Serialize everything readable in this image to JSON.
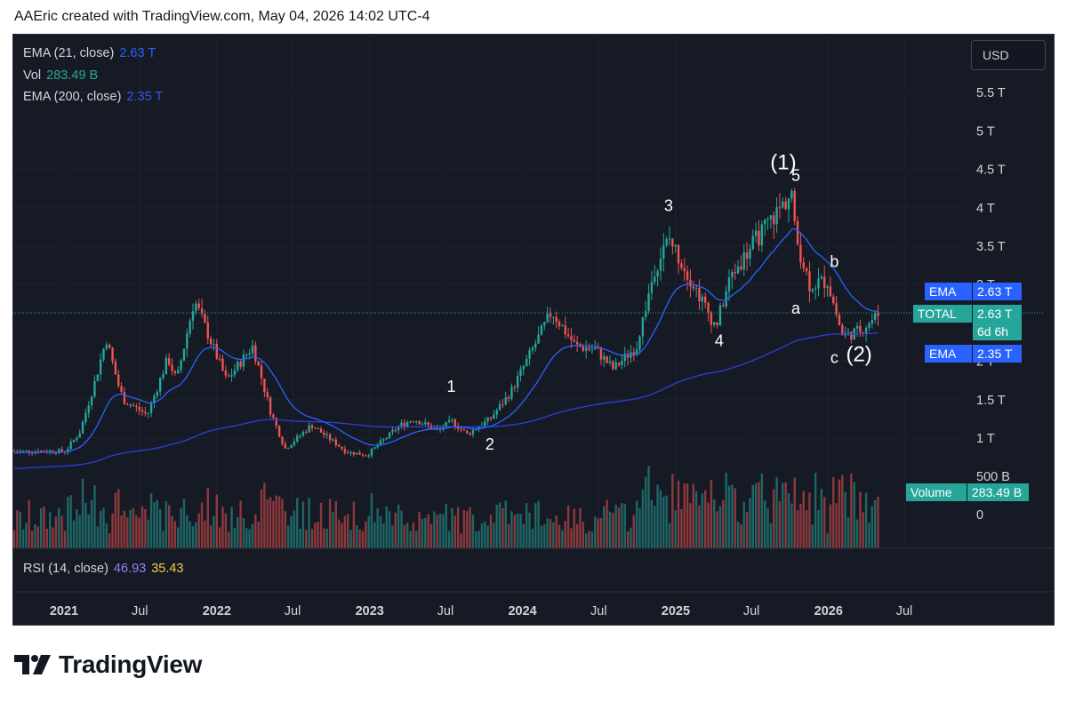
{
  "header": {
    "attribution": "AAEric created with TradingView.com, May 04, 2026 14:02 UTC-4"
  },
  "legend": {
    "ema21_label": "EMA (21, close)",
    "ema21_value": "2.63 T",
    "vol_label": "Vol",
    "vol_value": "283.49 B",
    "ema200_label": "EMA (200, close)",
    "ema200_value": "2.35 T",
    "rsi_label": "RSI (14, close)",
    "rsi_value1": "46.93",
    "rsi_value2": "35.43"
  },
  "currency_button": "USD",
  "price_tags": {
    "ema_top": {
      "label": "EMA",
      "value": "2.63 T"
    },
    "total": {
      "label": "TOTAL",
      "value": "2.63 T",
      "countdown": "6d 6h"
    },
    "ema_bottom": {
      "label": "EMA",
      "value": "2.35 T"
    },
    "volume": {
      "label": "Volume",
      "value": "283.49 B"
    }
  },
  "colors": {
    "up": "#26a69a",
    "down": "#ef5350",
    "ema21": "#2962ff",
    "ema200": "#2f3fd6",
    "background": "#161a25",
    "text": "#d1d4dc",
    "total_tag": "#26a69a",
    "ema_tag": "#2962ff"
  },
  "branding": "TradingView",
  "chart_data": {
    "type": "candlestick",
    "symbol": "TOTAL",
    "interval": "weekly",
    "currency": "USD",
    "x_ticks": [
      "2021",
      "Jul",
      "2022",
      "Jul",
      "2023",
      "Jul",
      "2024",
      "Jul",
      "2025",
      "Jul",
      "2026",
      "Jul"
    ],
    "y_ticks": [
      "5.5 T",
      "5 T",
      "4.5 T",
      "4 T",
      "3.5 T",
      "3 T",
      "2.5 T",
      "2 T",
      "1.5 T",
      "1 T"
    ],
    "volume_ticks": [
      "500 B",
      "0"
    ],
    "price_path": {
      "dates": [
        "2021-01-04",
        "2021-02-08",
        "2021-03-15",
        "2021-04-12",
        "2021-05-10",
        "2021-05-24",
        "2021-07-19",
        "2021-09-06",
        "2021-09-27",
        "2021-11-08",
        "2022-01-24",
        "2022-03-28",
        "2022-05-09",
        "2022-06-13",
        "2022-08-15",
        "2022-11-07",
        "2022-12-26",
        "2023-03-13",
        "2023-04-17",
        "2023-06-12",
        "2023-07-17",
        "2023-08-21",
        "2023-10-16",
        "2023-12-04",
        "2024-03-11",
        "2024-05-06",
        "2024-06-24",
        "2024-08-05",
        "2024-09-30",
        "2024-11-11",
        "2024-12-16",
        "2025-02-03",
        "2025-04-07",
        "2025-05-12",
        "2025-07-14",
        "2025-08-18",
        "2025-10-06",
        "2025-10-13",
        "2025-11-17",
        "2025-12-29",
        "2026-02-02",
        "2026-02-16",
        "2026-03-16",
        "2026-05-04"
      ],
      "closes": [
        0.83,
        1.08,
        1.72,
        2.3,
        1.7,
        1.49,
        1.3,
        2.04,
        1.75,
        2.8,
        1.75,
        2.2,
        1.35,
        0.86,
        1.17,
        0.82,
        0.78,
        1.16,
        1.25,
        1.1,
        1.22,
        1.05,
        1.25,
        1.6,
        2.65,
        2.2,
        2.15,
        1.9,
        2.2,
        3.2,
        3.6,
        3.1,
        2.45,
        3.1,
        3.6,
        3.85,
        4.2,
        3.65,
        3.0,
        3.05,
        2.35,
        2.35,
        2.4,
        2.63
      ]
    },
    "ema21_last": 2.63,
    "ema200_last": 2.35,
    "last_volume": "283.49 B",
    "wave_labels": [
      {
        "text": "1",
        "date": "2023-07",
        "price": 1.6
      },
      {
        "text": "2",
        "date": "2023-10",
        "price": 0.85
      },
      {
        "text": "3",
        "date": "2024-12",
        "price": 3.96
      },
      {
        "text": "4",
        "date": "2025-04",
        "price": 2.2
      },
      {
        "text": "(1)",
        "date": "2025-09",
        "price": 4.5
      },
      {
        "text": "5",
        "date": "2025-10",
        "price": 4.35
      },
      {
        "text": "a",
        "date": "2025-10",
        "price": 2.62
      },
      {
        "text": "b",
        "date": "2026-01",
        "price": 3.23
      },
      {
        "text": "c",
        "date": "2026-01",
        "price": 1.98
      },
      {
        "text": "(2)",
        "date": "2026-03",
        "price": 2.0
      }
    ]
  }
}
